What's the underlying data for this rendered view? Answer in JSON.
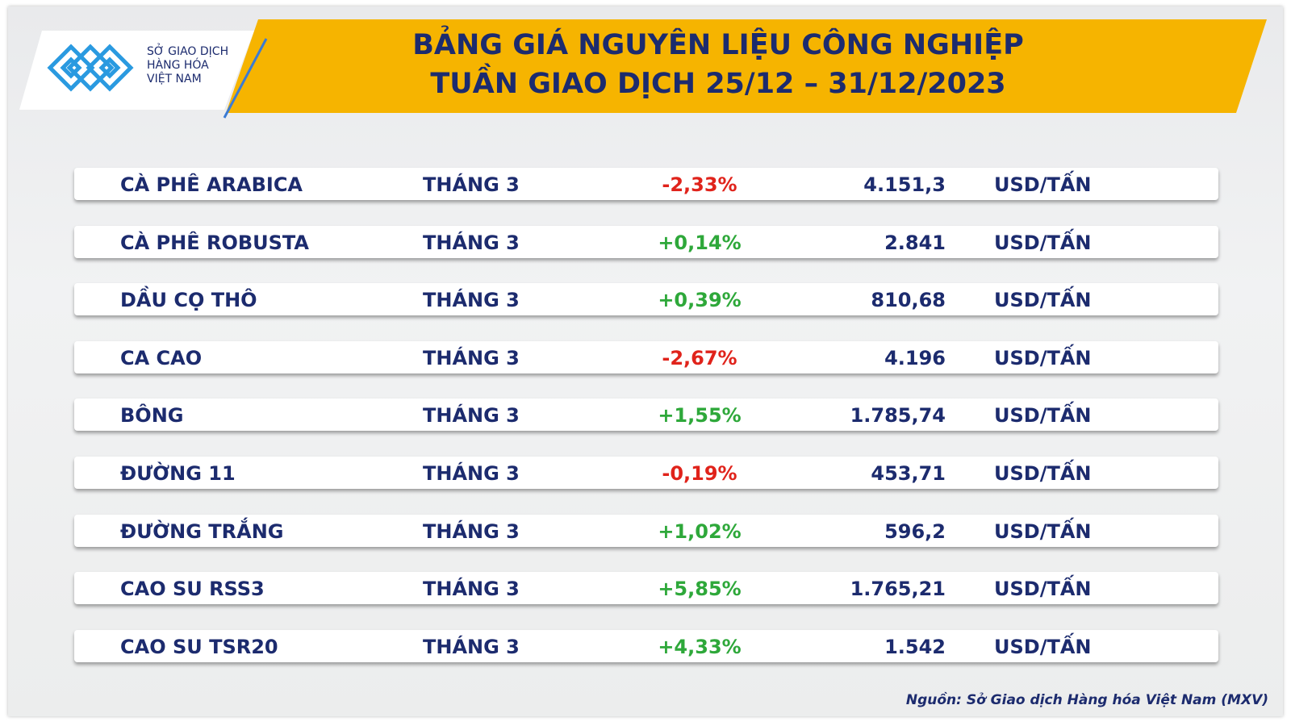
{
  "logo": {
    "lines": [
      "SỞ GIAO DỊCH",
      "HÀNG HÓA",
      "VIỆT NAM"
    ]
  },
  "header": {
    "title_lines": [
      "BẢNG GIÁ NGUYÊN LIỆU CÔNG NGHIỆP",
      "TUẦN GIAO DỊCH 25/12 – 31/12/2023"
    ]
  },
  "table": {
    "rows": [
      [
        "CÀ PHÊ ARABICA",
        "THÁNG 3",
        "-2,33%",
        "4.151,3",
        "USD/TẤN"
      ],
      [
        "CÀ PHÊ ROBUSTA",
        "THÁNG 3",
        "+0,14%",
        "2.841",
        "USD/TẤN"
      ],
      [
        "DẦU CỌ THÔ",
        "THÁNG 3",
        "+0,39%",
        "810,68",
        "USD/TẤN"
      ],
      [
        "CA CAO",
        "THÁNG 3",
        "-2,67%",
        "4.196",
        "USD/TẤN"
      ],
      [
        "BÔNG",
        "THÁNG 3",
        "+1,55%",
        "1.785,74",
        "USD/TẤN"
      ],
      [
        "ĐƯỜNG 11",
        "THÁNG 3",
        "-0,19%",
        "453,71",
        "USD/TẤN"
      ],
      [
        "ĐƯỜNG TRẮNG",
        "THÁNG 3",
        "+1,02%",
        "596,2",
        "USD/TẤN"
      ],
      [
        "CAO SU RSS3",
        "THÁNG 3",
        "+5,85%",
        "1.765,21",
        "USD/TẤN"
      ],
      [
        "CAO SU TSR20",
        "THÁNG 3",
        "+4,33%",
        "1.542",
        "USD/TẤN"
      ]
    ]
  },
  "footer": {
    "source": "Nguồn: Sở Giao dịch Hàng hóa Việt Nam (MXV)"
  }
}
